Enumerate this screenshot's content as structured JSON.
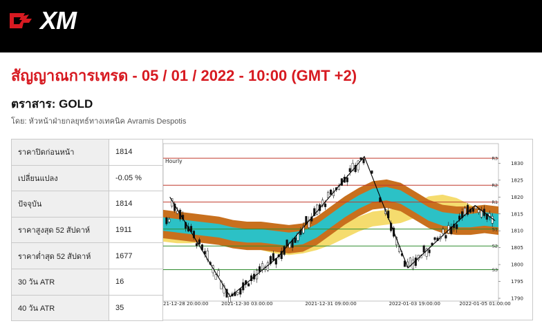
{
  "header": {
    "brand": "XM",
    "logo_icon": "bull-icon",
    "title": "สัญญาณการเทรด - 05 / 01 / 2022 - 10:00 (GMT +2)",
    "instrument": "ตราสาร: GOLD",
    "author": "โดย: หัวหน้าฝ่ายกลยุทธ์ทางเทคนิค Avramis Despotis"
  },
  "stats": [
    {
      "label": "ราคาปิดก่อนหน้า",
      "value": "1814"
    },
    {
      "label": "เปลี่ยนแปลง",
      "value": "-0.05 %"
    },
    {
      "label": "ปัจจุบัน",
      "value": "1814"
    },
    {
      "label": "ราคาสูงสุด 52 สัปดาห์",
      "value": "1911"
    },
    {
      "label": "ราคาต่ำสุด 52 สัปดาห์",
      "value": "1677"
    },
    {
      "label": "30 วัน ATR",
      "value": "16"
    },
    {
      "label": "40 วัน ATR",
      "value": "35"
    }
  ],
  "chart_data": {
    "type": "line",
    "timeframe_label": "Hourly",
    "ylim": [
      1790,
      1835
    ],
    "y_ticks": [
      1790,
      1795,
      1800,
      1805,
      1810,
      1815,
      1820,
      1825,
      1830
    ],
    "x_ticks": [
      "21-12-28 20:00:00",
      "2021-12-30 03:00:00",
      "2021-12-31 09:00:00",
      "2022-01-03 19:00:00",
      "2022-01-05 01:00:00"
    ],
    "levels": [
      {
        "name": "R3",
        "value": 1831.5,
        "color": "#c0392b"
      },
      {
        "name": "R2",
        "value": 1823.5,
        "color": "#c0392b"
      },
      {
        "name": "R1",
        "value": 1818.5,
        "color": "#c0392b"
      },
      {
        "name": "S1",
        "value": 1810.5,
        "color": "#2e8b2e"
      },
      {
        "name": "S2",
        "value": 1805.5,
        "color": "#2e8b2e"
      },
      {
        "name": "S3",
        "value": 1798.5,
        "color": "#2e8b2e"
      }
    ],
    "zigzag": [
      {
        "x": 0.02,
        "y": 1820
      },
      {
        "x": 0.2,
        "y": 1790.5
      },
      {
        "x": 0.34,
        "y": 1802
      },
      {
        "x": 0.6,
        "y": 1832
      },
      {
        "x": 0.73,
        "y": 1799
      },
      {
        "x": 0.93,
        "y": 1817.5
      },
      {
        "x": 0.99,
        "y": 1813
      }
    ],
    "colors": {
      "band_orange": "#c8701e",
      "band_teal": "#2cc1c6",
      "band_yellow": "#f5dc6e",
      "candle": "#111111"
    }
  }
}
